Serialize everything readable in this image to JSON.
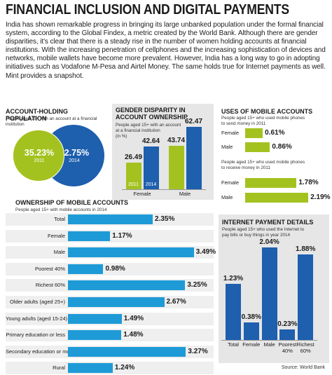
{
  "title": "FINANCIAL INCLUSION AND DIGITAL PAYMENTS",
  "intro": "India has shown remarkable progress in bringing its large unbanked population under the formal financial system, according to the Global Findex, a metric created by the World Bank. Although there are gender disparities, it's clear that there is a steady rise in the number of women holding accounts at financial institutions. With the increasing penetration of cellphones and the increasing sophistication of devices and networks, mobile wallets have become more prevalent. However, India has a long way to go in adopting initiatives such as Vodafone M-Pesa and Airtel Money. The same holds true for Internet payments as well. Mint provides a snapshot.",
  "source": "Source: World Bank",
  "chart_data": [
    {
      "type": "bubble",
      "title": "ACCOUNT-HOLDING POPULATION",
      "subtitle": "People aged 15+ with an account at a financial institution",
      "categories": [
        "2011",
        "2014"
      ],
      "values": [
        35.23,
        52.75
      ],
      "value_labels": [
        "35.23%",
        "52.75%"
      ],
      "colors": [
        "#a4c21f",
        "#1e5fae"
      ]
    },
    {
      "type": "bar",
      "title": "GENDER DISPARITY IN ACCOUNT OWNERSHIP",
      "subtitle": "People aged 15+ with an account at a financial institution",
      "note": "(in %)",
      "categories": [
        "Female",
        "Male"
      ],
      "series": [
        {
          "name": "2011",
          "color": "#a4c21f",
          "values": [
            26.49,
            43.74
          ]
        },
        {
          "name": "2014",
          "color": "#1e5fae",
          "values": [
            42.64,
            62.47
          ]
        }
      ],
      "ylim": [
        0,
        70
      ]
    },
    {
      "type": "hbar",
      "title": "USES OF MOBILE ACCOUNTS",
      "subtitle": "People aged 15+ who used mobile phones to send money in 2011",
      "categories": [
        "Female",
        "Male"
      ],
      "values": [
        0.61,
        0.86
      ],
      "value_labels": [
        "0.61%",
        "0.86%"
      ],
      "color": "#a4c21f",
      "xlim": [
        0,
        2.5
      ]
    },
    {
      "type": "hbar",
      "subtitle": "People aged 15+ who used mobile phones to receive money in 2011",
      "categories": [
        "Female",
        "Male"
      ],
      "values": [
        1.78,
        2.19
      ],
      "value_labels": [
        "1.78%",
        "2.19%"
      ],
      "color": "#a4c21f",
      "xlim": [
        0,
        2.5
      ]
    },
    {
      "type": "hbar",
      "title": "OWNERSHIP OF MOBILE ACCOUNTS",
      "subtitle": "People aged 15+ with mobile accounts in 2014",
      "categories": [
        "Total",
        "Female",
        "Male",
        "Poorest 40%",
        "Richest 60%",
        "Older adults (aged 25+)",
        "Young adults (aged 15-24)",
        "Primary education or less",
        "Secondary education or more",
        "Rural"
      ],
      "values": [
        2.35,
        1.17,
        3.49,
        0.98,
        3.25,
        2.67,
        1.49,
        1.48,
        3.27,
        1.24
      ],
      "value_labels": [
        "2.35%",
        "1.17%",
        "3.49%",
        "0.98%",
        "3.25%",
        "2.67%",
        "1.49%",
        "1.48%",
        "3.27%",
        "1.24%"
      ],
      "color": "#1e9bd7",
      "xlim": [
        0,
        4
      ]
    },
    {
      "type": "bar",
      "title": "INTERNET PAYMENT DETAILS",
      "subtitle": "People aged 15+ who used the Internet to pay bills or buy things in year 2014",
      "categories": [
        "Total",
        "Female",
        "Male",
        "Poorest 40%",
        "Richest 60%"
      ],
      "values": [
        1.23,
        0.38,
        2.04,
        0.23,
        1.88
      ],
      "value_labels": [
        "1.23%",
        "0.38%",
        "2.04%",
        "0.23%",
        "1.88%"
      ],
      "color": "#1e5fae",
      "ylim": [
        0,
        2.5
      ]
    }
  ]
}
